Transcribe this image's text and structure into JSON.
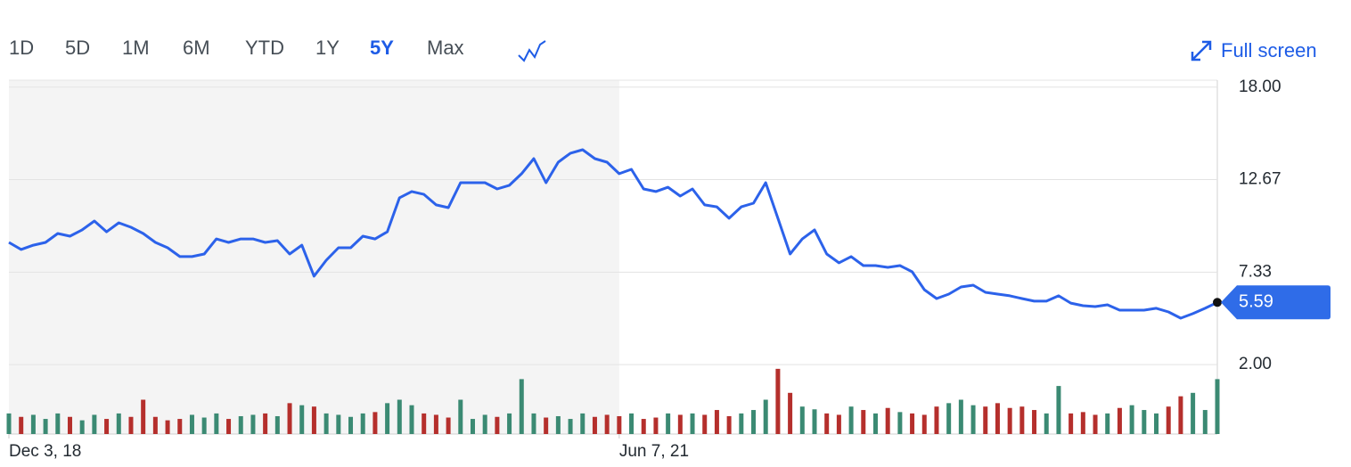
{
  "toolbar": {
    "ranges": [
      "1D",
      "5D",
      "1M",
      "6M",
      "YTD",
      "1Y",
      "5Y",
      "Max"
    ],
    "active": "5Y",
    "fullscreen": "Full screen"
  },
  "chart_data": {
    "type": "line",
    "categories": [
      "Dec 3, 18",
      null,
      null,
      null,
      null,
      null,
      null,
      null,
      null,
      null,
      null,
      null,
      null,
      null,
      null,
      null,
      null,
      null,
      null,
      null,
      null,
      null,
      null,
      null,
      null,
      null,
      null,
      null,
      null,
      null,
      null,
      null,
      null,
      null,
      null,
      null,
      null,
      null,
      null,
      null,
      null,
      null,
      null,
      null,
      null,
      null,
      null,
      null,
      null,
      null,
      "Jun 7, 21",
      null,
      null,
      null,
      null,
      null,
      null,
      null,
      null,
      null,
      null,
      null,
      null,
      null,
      null,
      null,
      null,
      null,
      null,
      null,
      null,
      null,
      null,
      null,
      null,
      null,
      null,
      null,
      null,
      null,
      null,
      null,
      null,
      null,
      null,
      null,
      null,
      null,
      null,
      null,
      null,
      null,
      null,
      null,
      null,
      null,
      null,
      null,
      null,
      null
    ],
    "series": [
      {
        "color": "#2c62ea",
        "values": [
          9.05,
          8.64,
          8.89,
          9.05,
          9.56,
          9.41,
          9.77,
          10.28,
          9.66,
          10.18,
          9.92,
          9.56,
          9.05,
          8.74,
          8.23,
          8.23,
          8.38,
          9.25,
          9.05,
          9.25,
          9.25,
          9.05,
          9.15,
          8.38,
          8.89,
          7.1,
          8.02,
          8.74,
          8.74,
          9.41,
          9.25,
          9.66,
          11.62,
          11.98,
          11.82,
          11.21,
          11.05,
          12.49,
          12.49,
          12.49,
          12.13,
          12.34,
          13.01,
          13.88,
          12.49,
          13.67,
          14.19,
          14.39,
          13.88,
          13.67,
          13.01,
          13.26,
          12.13,
          11.98,
          12.23,
          11.72,
          12.13,
          11.21,
          11.1,
          10.44,
          11.1,
          11.31,
          12.49,
          10.44,
          8.38,
          9.25,
          9.77,
          8.38,
          7.87,
          8.23,
          7.71,
          7.71,
          7.61,
          7.71,
          7.35,
          6.32,
          5.81,
          6.07,
          6.48,
          6.58,
          6.17,
          6.07,
          5.97,
          5.81,
          5.66,
          5.66,
          5.97,
          5.55,
          5.4,
          5.35,
          5.45,
          5.14,
          5.14,
          5.14,
          5.25,
          5.04,
          4.68,
          4.94,
          5.25,
          5.59
        ]
      }
    ],
    "volume": {
      "up_color": "#3b8a73",
      "down_color": "#b52f2c",
      "vlim": [
        0,
        100
      ],
      "values": [
        30,
        25,
        28,
        22,
        30,
        25,
        20,
        28,
        22,
        30,
        25,
        50,
        25,
        20,
        22,
        28,
        24,
        30,
        22,
        26,
        28,
        30,
        26,
        45,
        42,
        40,
        30,
        28,
        25,
        30,
        32,
        45,
        50,
        42,
        30,
        28,
        24,
        50,
        22,
        28,
        25,
        30,
        80,
        30,
        24,
        26,
        22,
        30,
        25,
        28,
        26,
        30,
        22,
        24,
        30,
        28,
        30,
        28,
        35,
        26,
        30,
        35,
        50,
        95,
        60,
        40,
        36,
        30,
        28,
        40,
        35,
        30,
        38,
        32,
        30,
        28,
        40,
        45,
        50,
        42,
        40,
        45,
        38,
        40,
        35,
        30,
        70,
        30,
        32,
        28,
        30,
        38,
        42,
        35,
        30,
        40,
        55,
        60,
        35,
        80
      ]
    },
    "current_price": 5.59,
    "badge_color": "#2f6ce8",
    "ylim": [
      -2,
      18.4
    ],
    "yticks": [
      {
        "value": 18,
        "label": "18.00"
      },
      {
        "value": 12.67,
        "label": "12.67"
      },
      {
        "value": 7.33,
        "label": "7.33"
      },
      {
        "value": 2,
        "label": "2.00"
      }
    ],
    "grid": true
  }
}
